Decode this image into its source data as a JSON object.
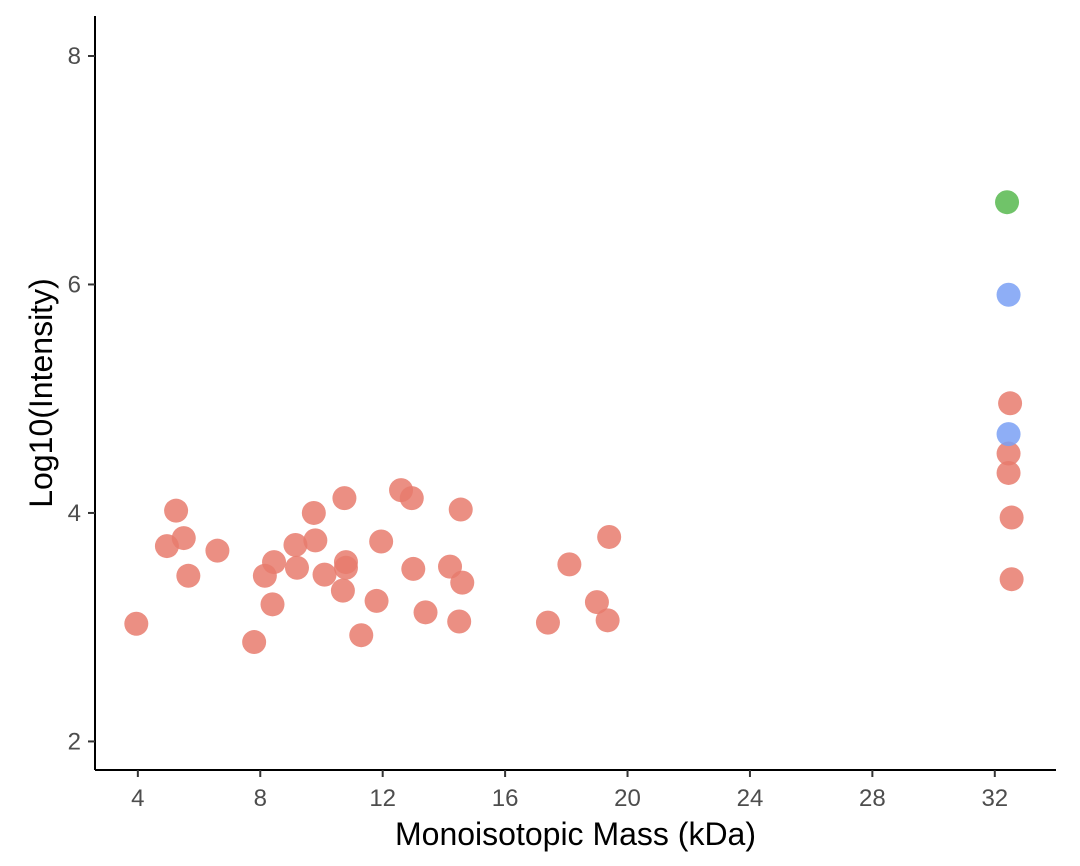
{
  "chart_data": {
    "type": "scatter",
    "title": "",
    "xlabel": "Monoisotopic Mass (kDa)",
    "ylabel": "Log10(Intensity)",
    "xlim": [
      2.6,
      34.0
    ],
    "ylim": [
      1.75,
      8.35
    ],
    "x_ticks": [
      4,
      8,
      12,
      16,
      20,
      24,
      28,
      32
    ],
    "y_ticks": [
      2,
      4,
      6,
      8
    ],
    "grid": false,
    "legend": "none",
    "colors": {
      "red": "#e87b6d",
      "blue": "#7aa0f5",
      "green": "#57b94f"
    },
    "series": [
      {
        "color": "#e87b6d",
        "points": [
          [
            3.95,
            3.03
          ],
          [
            4.95,
            3.71
          ],
          [
            5.25,
            4.02
          ],
          [
            5.5,
            3.78
          ],
          [
            5.65,
            3.45
          ],
          [
            6.6,
            3.67
          ],
          [
            7.8,
            2.87
          ],
          [
            8.15,
            3.45
          ],
          [
            8.4,
            3.2
          ],
          [
            8.45,
            3.57
          ],
          [
            9.15,
            3.72
          ],
          [
            9.2,
            3.52
          ],
          [
            9.75,
            4.0
          ],
          [
            9.8,
            3.76
          ],
          [
            10.1,
            3.46
          ],
          [
            10.7,
            3.32
          ],
          [
            10.75,
            4.13
          ],
          [
            10.8,
            3.57
          ],
          [
            10.8,
            3.52
          ],
          [
            11.3,
            2.93
          ],
          [
            11.8,
            3.23
          ],
          [
            11.95,
            3.75
          ],
          [
            12.6,
            4.2
          ],
          [
            12.95,
            4.13
          ],
          [
            13.0,
            3.51
          ],
          [
            13.4,
            3.13
          ],
          [
            14.2,
            3.53
          ],
          [
            14.5,
            3.05
          ],
          [
            14.55,
            4.03
          ],
          [
            14.6,
            3.39
          ],
          [
            17.4,
            3.04
          ],
          [
            18.1,
            3.55
          ],
          [
            19.0,
            3.22
          ],
          [
            19.35,
            3.06
          ],
          [
            19.4,
            3.79
          ],
          [
            32.45,
            4.52
          ],
          [
            32.45,
            4.35
          ],
          [
            32.5,
            4.96
          ],
          [
            32.55,
            3.96
          ],
          [
            32.55,
            3.42
          ]
        ]
      },
      {
        "color": "#7aa0f5",
        "points": [
          [
            32.45,
            5.91
          ],
          [
            32.45,
            4.69
          ]
        ]
      },
      {
        "color": "#57b94f",
        "points": [
          [
            32.4,
            6.72
          ]
        ]
      }
    ]
  }
}
